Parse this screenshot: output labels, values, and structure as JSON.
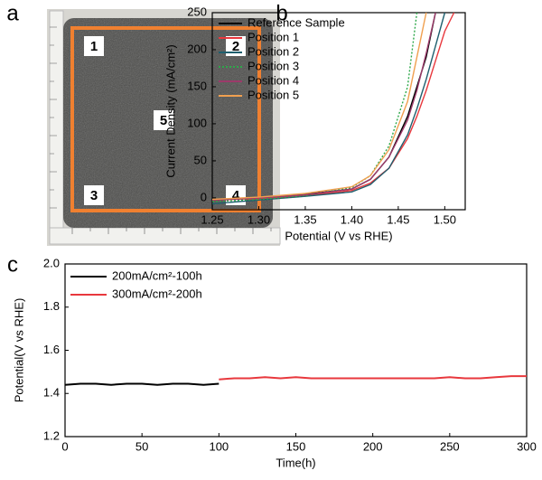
{
  "photo": {
    "panel": "a",
    "markers": [
      "1",
      "2",
      "3",
      "4",
      "5"
    ]
  },
  "chart_data": [
    {
      "type": "line",
      "panel": "b",
      "xlabel": "Potential (V vs RHE)",
      "ylabel": "Current Density (mA/cm²)",
      "x": [
        1.25,
        1.3,
        1.35,
        1.4,
        1.42,
        1.44,
        1.46,
        1.47,
        1.48,
        1.49,
        1.5,
        1.51
      ],
      "series": [
        {
          "name": "Reference Sample",
          "color": "#000000",
          "values": [
            -3,
            0,
            5,
            12,
            25,
            55,
            110,
            150,
            190,
            250,
            null,
            null
          ]
        },
        {
          "name": "Position 1",
          "color": "#e8383d",
          "values": [
            -3,
            -1,
            3,
            10,
            20,
            40,
            80,
            110,
            145,
            185,
            225,
            250
          ]
        },
        {
          "name": "Position 2",
          "color": "#1f5f6e",
          "values": [
            -8,
            -3,
            2,
            8,
            18,
            40,
            85,
            120,
            160,
            205,
            250,
            null
          ]
        },
        {
          "name": "Position 3",
          "color": "#2ea84a",
          "dash": "2,2",
          "values": [
            -5,
            -2,
            3,
            14,
            30,
            70,
            150,
            250,
            null,
            null,
            null,
            null
          ]
        },
        {
          "name": "Position 4",
          "color": "#9c3a6a",
          "values": [
            -3,
            0,
            4,
            12,
            25,
            55,
            105,
            145,
            195,
            250,
            null,
            null
          ]
        },
        {
          "name": "Position 5",
          "color": "#f0a050",
          "values": [
            -2,
            1,
            6,
            15,
            30,
            65,
            130,
            190,
            250,
            null,
            null,
            null
          ]
        }
      ],
      "xlim": [
        1.25,
        1.522
      ],
      "ylim": [
        -16,
        250
      ],
      "xticks": [
        1.25,
        {
          "value": 1.3,
          "label": "1.30"
        },
        1.35,
        {
          "value": 1.4,
          "label": "1.40"
        },
        1.45,
        {
          "value": 1.5,
          "label": "1.50"
        }
      ],
      "yticks": [
        0,
        50,
        100,
        150,
        200,
        250
      ]
    },
    {
      "type": "line",
      "panel": "c",
      "xlabel": "Time(h)",
      "ylabel": "Potential(V vs RHE)",
      "series": [
        {
          "name": "200mA/cm²-100h",
          "color": "#000000",
          "x": [
            0,
            10,
            20,
            30,
            40,
            50,
            60,
            70,
            80,
            90,
            100
          ],
          "values": [
            1.44,
            1.445,
            1.445,
            1.44,
            1.445,
            1.445,
            1.44,
            1.445,
            1.445,
            1.44,
            1.445
          ]
        },
        {
          "name": "300mA/cm²-200h",
          "color": "#e8383d",
          "x": [
            100,
            110,
            120,
            130,
            140,
            150,
            160,
            170,
            180,
            190,
            200,
            210,
            220,
            230,
            240,
            250,
            260,
            270,
            280,
            290,
            300
          ],
          "values": [
            1.465,
            1.47,
            1.47,
            1.475,
            1.47,
            1.475,
            1.47,
            1.47,
            1.47,
            1.47,
            1.47,
            1.47,
            1.47,
            1.47,
            1.47,
            1.475,
            1.47,
            1.47,
            1.475,
            1.48,
            1.48
          ]
        }
      ],
      "xlim": [
        0,
        300
      ],
      "ylim": [
        1.2,
        2.0
      ],
      "xticks": [
        0,
        50,
        100,
        150,
        200,
        250,
        300
      ],
      "yticks": [
        1.2,
        1.4,
        1.6,
        1.8,
        {
          "value": 2.0,
          "label": "2.0"
        }
      ]
    }
  ]
}
